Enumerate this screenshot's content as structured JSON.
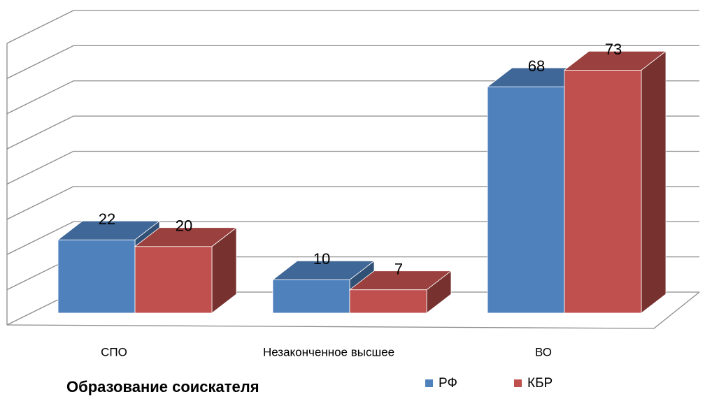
{
  "chart_data": {
    "type": "bar3d",
    "title": "Образование соискателя",
    "categories": [
      "СПО",
      "Незаконченное высшее",
      "ВО"
    ],
    "series": [
      {
        "name": "РФ",
        "color": "#4f81bd",
        "values": [
          22,
          10,
          68
        ]
      },
      {
        "name": "КБР",
        "color": "#c0504d",
        "values": [
          20,
          7,
          73
        ]
      }
    ],
    "ylim": [
      0,
      80
    ],
    "yticks": [
      0,
      10,
      20,
      30,
      40,
      50,
      60,
      70,
      80
    ],
    "grid": true,
    "legend": "bottom"
  }
}
